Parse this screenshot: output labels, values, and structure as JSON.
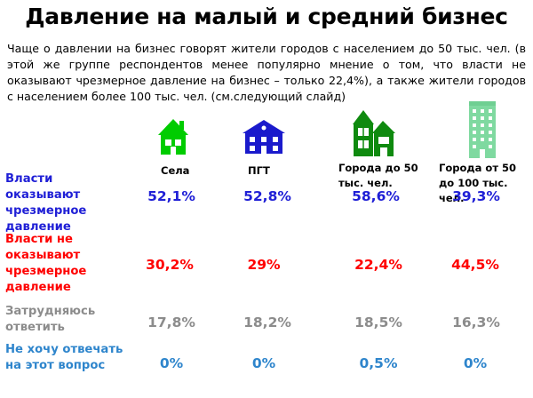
{
  "title": "Давление на малый и средний бизнес",
  "intro": "Чаще о давлении на бизнес говорят жители городов с населением до 50 тыс. чел. (в этой же группе респондентов менее популярно мнение о том, что власти не оказывают чрезмерное давление на бизнес – только 22,4%), а также жители городов с населением более 100 тыс. чел. (см.следующий слайд)",
  "colors": {
    "row_1": "#1f1fd6",
    "row_2": "#ff0000",
    "row_3": "#8c8c8c",
    "row_4": "#2e85cc",
    "icon_village": "#00cc00",
    "icon_pgt": "#1a1acc",
    "icon_city50": "#0f8a0f",
    "icon_city50plus": "#7fd9a0"
  },
  "icons": [
    "house-icon",
    "two-storey-house-icon",
    "cottage-icon",
    "apartment-building-icon"
  ],
  "chart_data": {
    "type": "table",
    "columns": [
      "Села",
      "ПГТ",
      "Города до 50 тыс. чел.",
      "Города от 50 до 100 тыс. чел."
    ],
    "rows": [
      {
        "label": "Власти оказывают чрезмерное давление",
        "values": [
          "52,1%",
          "52,8%",
          "58,6%",
          "39,3%"
        ]
      },
      {
        "label": "Власти не оказывают чрезмерное давление",
        "values": [
          "30,2%",
          "29%",
          "22,4%",
          "44,5%"
        ]
      },
      {
        "label": "Затрудняюсь ответить",
        "values": [
          "17,8%",
          "18,2%",
          "18,5%",
          "16,3%"
        ]
      },
      {
        "label": "Не хочу отвечать на этот вопрос",
        "values": [
          "0%",
          "0%",
          "0,5%",
          "0%"
        ]
      }
    ]
  }
}
